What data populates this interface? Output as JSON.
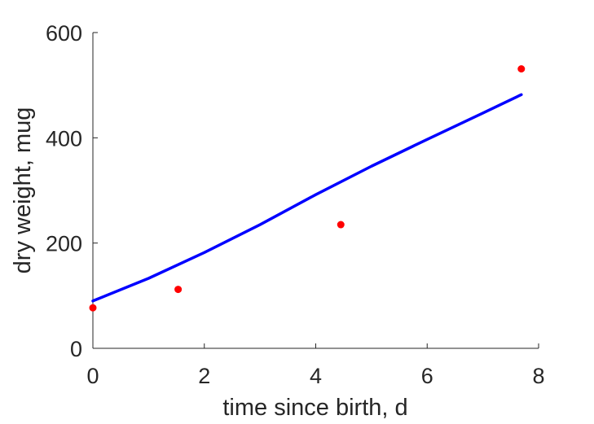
{
  "chart_data": {
    "type": "scatter",
    "xlabel": "time since birth, d",
    "ylabel": "dry weight, mug",
    "xlim": [
      0,
      8
    ],
    "ylim": [
      0,
      600
    ],
    "xticks": [
      0,
      2,
      4,
      6,
      8
    ],
    "yticks": [
      0,
      200,
      400,
      600
    ],
    "grid": false,
    "box": false,
    "series": [
      {
        "kind": "scatter",
        "color": "#ff0000",
        "x": [
          0,
          1.53,
          4.45,
          7.69
        ],
        "y": [
          77,
          112,
          235,
          531
        ]
      },
      {
        "kind": "line",
        "color": "#0000ff",
        "x": [
          0,
          1,
          2,
          3,
          4,
          5,
          6,
          7,
          7.69
        ],
        "y": [
          90,
          133,
          182,
          235,
          292,
          346,
          397,
          447,
          482
        ]
      }
    ]
  }
}
